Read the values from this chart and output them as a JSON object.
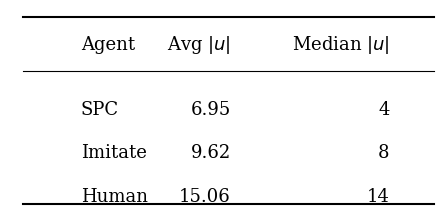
{
  "col_headers": [
    "Agent",
    "Avg $|u|$",
    "Median $|u|$"
  ],
  "rows": [
    [
      "SPC",
      "6.95",
      "4"
    ],
    [
      "Imitate",
      "9.62",
      "8"
    ],
    [
      "Human",
      "15.06",
      "14"
    ]
  ],
  "bg_color": "#ffffff",
  "text_color": "#000000",
  "fontsize": 13,
  "header_fontsize": 13
}
